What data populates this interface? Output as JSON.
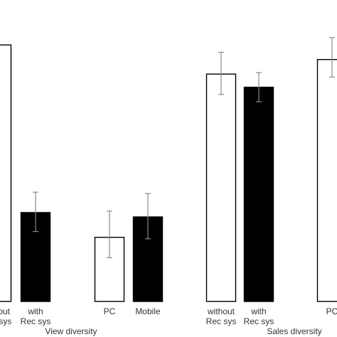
{
  "colors": {
    "open_bar_fill": "#ffffff",
    "filled_bar_fill": "#000000",
    "bar_stroke": "#000000",
    "error_bar": "#8a8a8a",
    "text": "#333333",
    "background": "#ffffff"
  },
  "chart_data": {
    "type": "bar",
    "title": "",
    "xlabel": "",
    "ylabel": "",
    "grid": false,
    "legend": "none",
    "value_scale": "relative bar height (no axis shown)",
    "ylim": [
      0,
      100
    ],
    "groups": [
      {
        "label": "View diversity",
        "bars": [
          {
            "label": "without Rec sys",
            "label_lines": [
              "without",
              "Rec sys"
            ],
            "style": "open",
            "value": 88,
            "err_low": 88,
            "err_high": 88
          },
          {
            "label": "with Rec sys",
            "label_lines": [
              "with",
              "Rec sys"
            ],
            "style": "filled",
            "value": 30.5,
            "err_low": 24,
            "err_high": 37.5
          },
          {
            "label": "PC",
            "label_lines": [
              "PC"
            ],
            "style": "open",
            "value": 22,
            "err_low": 15,
            "err_high": 31
          },
          {
            "label": "Mobile",
            "label_lines": [
              "Mobile"
            ],
            "style": "filled",
            "value": 29,
            "err_low": 21.5,
            "err_high": 37
          }
        ]
      },
      {
        "label": "Sales diversity",
        "bars": [
          {
            "label": "without Rec sys",
            "label_lines": [
              "without",
              "Rec sys"
            ],
            "style": "open",
            "value": 78,
            "err_low": 71,
            "err_high": 85.5
          },
          {
            "label": "with Rec sys",
            "label_lines": [
              "with",
              "Rec sys"
            ],
            "style": "filled",
            "value": 73.5,
            "err_low": 68.5,
            "err_high": 78.5
          },
          {
            "label": "PC",
            "label_lines": [
              "PC"
            ],
            "style": "open",
            "value": 83,
            "err_low": 77,
            "err_high": 90.5
          }
        ]
      }
    ]
  }
}
